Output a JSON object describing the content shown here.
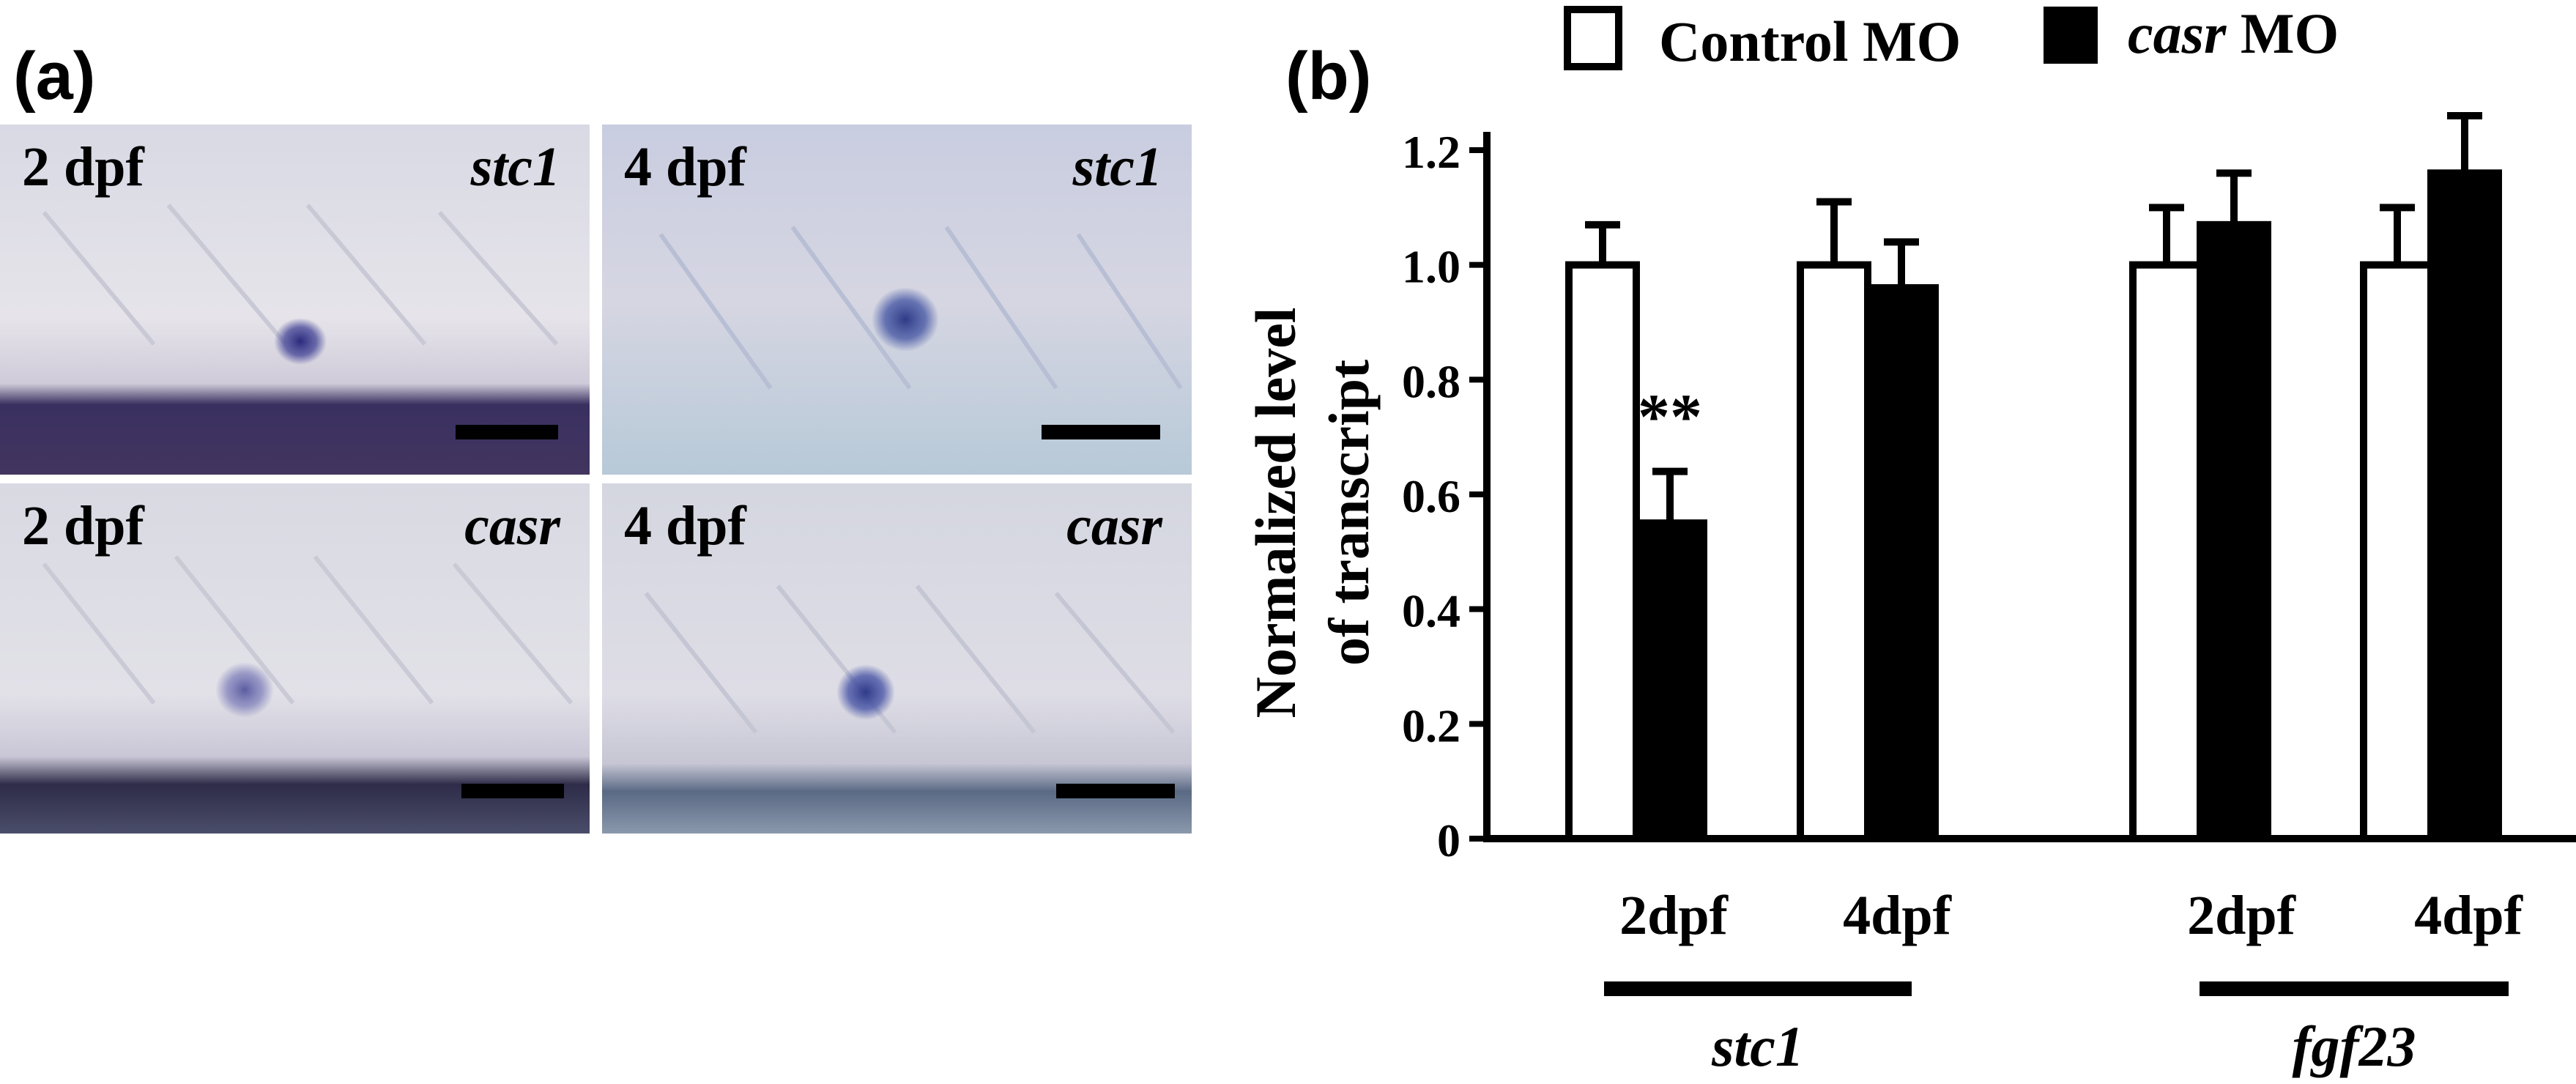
{
  "panel_a": {
    "label": "(a)",
    "images": [
      {
        "age": "2 dpf",
        "gene": "stc1"
      },
      {
        "age": "4 dpf",
        "gene": "stc1"
      },
      {
        "age": "2 dpf",
        "gene": "casr"
      },
      {
        "age": "4 dpf",
        "gene": "casr"
      }
    ]
  },
  "panel_b": {
    "label": "(b)",
    "significance": "**"
  },
  "chart_data": {
    "type": "bar",
    "ylabel_line1": "Normalized level",
    "ylabel_line2": "of  transcript",
    "ylim": [
      0,
      1.2
    ],
    "yticks": [
      "0",
      "0.2",
      "0.4",
      "0.6",
      "0.8",
      "1.0",
      "1.2"
    ],
    "categories": [
      "2dpf",
      "4dpf",
      "2dpf",
      "4dpf"
    ],
    "groups": [
      "stc1",
      "fgf23"
    ],
    "series": [
      {
        "name": "Control MO",
        "legend_plain": "Control MO",
        "fill": "#ffffff",
        "values": [
          1.0,
          1.0,
          1.0,
          1.0
        ],
        "errors": [
          0.07,
          0.11,
          0.1,
          0.1
        ]
      },
      {
        "name": "casr MO",
        "legend_italic": "casr",
        "legend_plain": " MO",
        "fill": "#000000",
        "values": [
          0.55,
          0.96,
          1.07,
          1.16
        ],
        "errors": [
          0.09,
          0.08,
          0.09,
          0.1
        ]
      }
    ],
    "grid": false,
    "legend_position": "top"
  }
}
